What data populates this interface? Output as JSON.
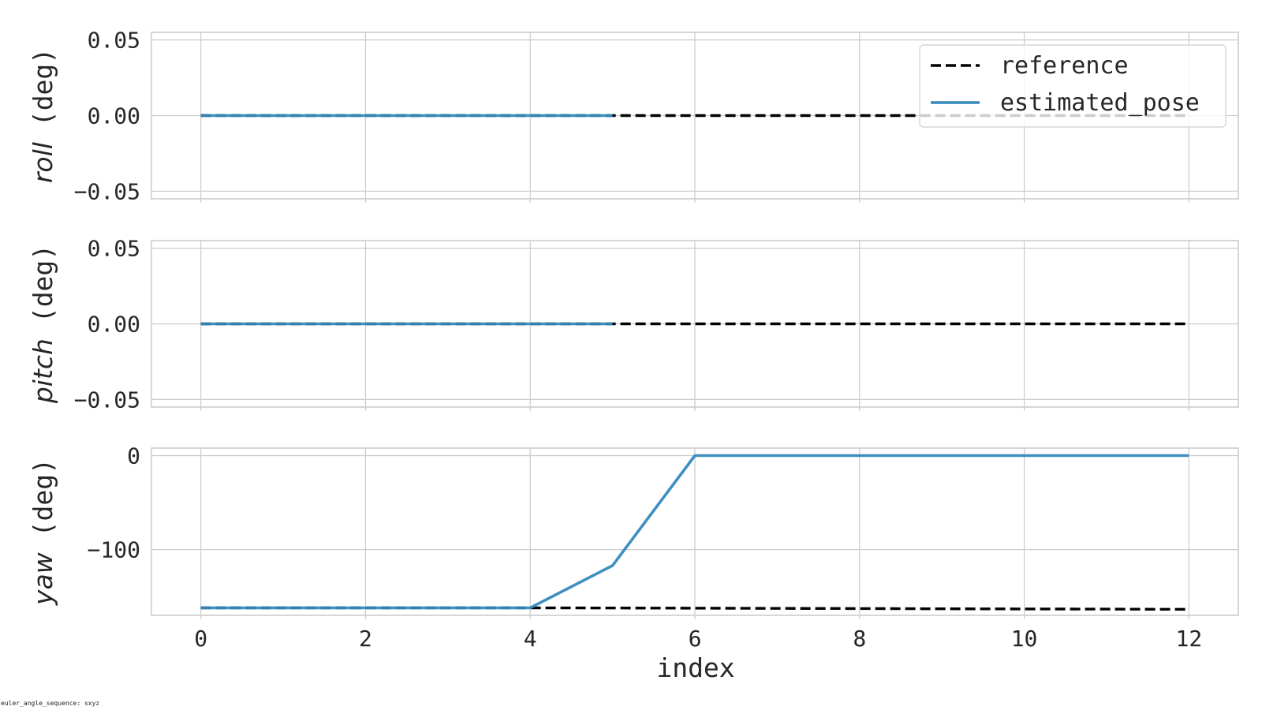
{
  "chart_data": [
    {
      "type": "line",
      "ylabel": "roll",
      "yunit": " (deg)",
      "x": [
        0,
        1,
        2,
        3,
        4,
        5,
        6,
        7,
        8,
        9,
        10,
        11,
        12
      ],
      "xticks": [
        "0",
        "2",
        "4",
        "6",
        "8",
        "10",
        "12"
      ],
      "ylim": [
        -0.055,
        0.055
      ],
      "yticks": [
        "0.05",
        "0.00",
        "−0.05"
      ],
      "ytick_values": [
        0.05,
        0,
        -0.05
      ],
      "grid": true,
      "series": [
        {
          "name": "reference",
          "style": "dashed",
          "color": "#000000",
          "x": [
            0,
            1,
            2,
            3,
            4,
            5,
            6,
            7,
            8,
            9,
            10,
            11,
            12
          ],
          "values": [
            0,
            0,
            0,
            0,
            0,
            0,
            0,
            0,
            0,
            0,
            0,
            0,
            0
          ]
        },
        {
          "name": "estimated_pose",
          "style": "solid",
          "color": "#348abd",
          "x": [
            0,
            1,
            2,
            3,
            4,
            5
          ],
          "values": [
            0,
            0,
            0,
            0,
            0,
            0
          ]
        }
      ],
      "legend": "top-right"
    },
    {
      "type": "line",
      "ylabel": "pitch",
      "yunit": " (deg)",
      "x": [
        0,
        1,
        2,
        3,
        4,
        5,
        6,
        7,
        8,
        9,
        10,
        11,
        12
      ],
      "xticks": [
        "0",
        "2",
        "4",
        "6",
        "8",
        "10",
        "12"
      ],
      "ylim": [
        -0.055,
        0.055
      ],
      "yticks": [
        "0.05",
        "0.00",
        "−0.05"
      ],
      "ytick_values": [
        0.05,
        0,
        -0.05
      ],
      "grid": true,
      "series": [
        {
          "name": "reference",
          "style": "dashed",
          "color": "#000000",
          "x": [
            0,
            1,
            2,
            3,
            4,
            5,
            6,
            7,
            8,
            9,
            10,
            11,
            12
          ],
          "values": [
            0,
            0,
            0,
            0,
            0,
            0,
            0,
            0,
            0,
            0,
            0,
            0,
            0
          ]
        },
        {
          "name": "estimated_pose",
          "style": "solid",
          "color": "#348abd",
          "x": [
            0,
            1,
            2,
            3,
            4,
            5
          ],
          "values": [
            0,
            0,
            0,
            0,
            0,
            0
          ]
        }
      ]
    },
    {
      "type": "line",
      "ylabel": "yaw",
      "yunit": " (deg)",
      "xlabel": "index",
      "x": [
        0,
        1,
        2,
        3,
        4,
        5,
        6,
        7,
        8,
        9,
        10,
        11,
        12
      ],
      "xticks": [
        "0",
        "2",
        "4",
        "6",
        "8",
        "10",
        "12"
      ],
      "ylim": [
        -170,
        8
      ],
      "yticks": [
        "0",
        "−100"
      ],
      "ytick_values": [
        0,
        -100
      ],
      "grid": true,
      "series": [
        {
          "name": "reference",
          "style": "dashed",
          "color": "#000000",
          "x": [
            0,
            1,
            2,
            3,
            4,
            5,
            6,
            7,
            8,
            9,
            10,
            11,
            12
          ],
          "values": [
            -162,
            -162,
            -162,
            -162,
            -162,
            -162.2,
            -162.4,
            -162.6,
            -162.8,
            -163,
            -163.2,
            -163.4,
            -163.6
          ]
        },
        {
          "name": "estimated_pose",
          "style": "solid",
          "color": "#348abd",
          "x": [
            0,
            1,
            2,
            3,
            4,
            5,
            6,
            7,
            8,
            9,
            10,
            11,
            12
          ],
          "values": [
            -162,
            -162,
            -162,
            -162,
            -162,
            -117,
            0,
            0,
            0,
            0,
            0,
            0,
            0
          ]
        }
      ]
    }
  ],
  "legend_entries": [
    "reference",
    "estimated_pose"
  ],
  "footer": "euler_angle_sequence: sxyz"
}
